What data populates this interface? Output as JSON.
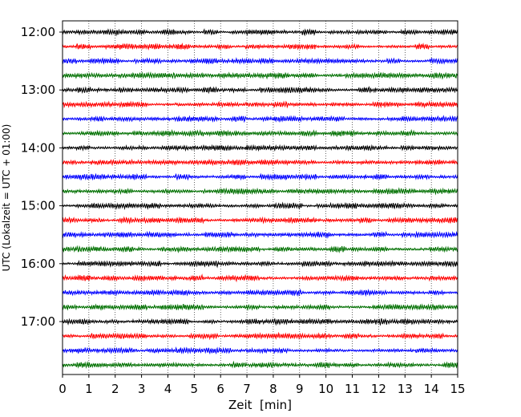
{
  "chart_data": {
    "type": "line",
    "title": "",
    "xlabel": "Zeit  [min]",
    "ylabel": "UTC (Lokalzeit = UTC + 01:00)",
    "xlim": [
      0,
      15
    ],
    "xticks": [
      0,
      1,
      2,
      3,
      4,
      5,
      6,
      7,
      8,
      9,
      10,
      11,
      12,
      13,
      14,
      15
    ],
    "xtick_labels": [
      "0",
      "1",
      "2",
      "3",
      "4",
      "5",
      "6",
      "7",
      "8",
      "9",
      "10",
      "11",
      "12",
      "13",
      "14",
      "15"
    ],
    "y_hour_labels": [
      "12:00",
      "13:00",
      "14:00",
      "15:00",
      "16:00",
      "17:00"
    ],
    "trace_start_times": [
      "12:00",
      "12:15",
      "12:30",
      "12:45",
      "13:00",
      "13:15",
      "13:30",
      "13:45",
      "14:00",
      "14:15",
      "14:30",
      "14:45",
      "15:00",
      "15:15",
      "15:30",
      "15:45",
      "16:00",
      "16:15",
      "16:30",
      "16:45",
      "17:00",
      "17:15",
      "17:30",
      "17:45"
    ],
    "trace_minutes_per_row": 15,
    "trace_color_cycle": [
      "#000000",
      "#ff0000",
      "#0000ff",
      "#007000"
    ],
    "grid": {
      "x": "dotted",
      "y": false
    },
    "legend": "none"
  }
}
